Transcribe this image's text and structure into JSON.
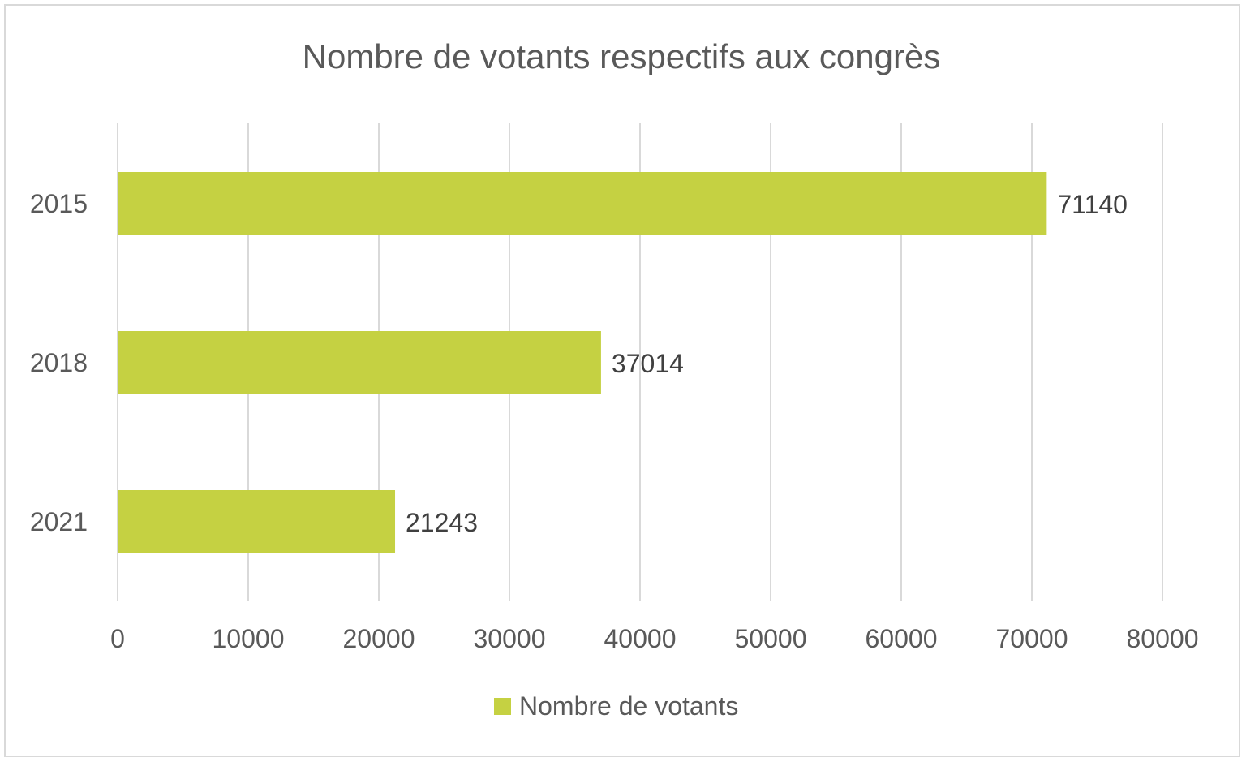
{
  "chart_data": {
    "type": "bar",
    "orientation": "horizontal",
    "title": "Nombre de votants respectifs aux congrès",
    "categories": [
      "2015",
      "2018",
      "2021"
    ],
    "series": [
      {
        "name": "Nombre de votants",
        "values": [
          71140,
          37014,
          21243
        ],
        "color": "#c5d142"
      }
    ],
    "xlabel": "",
    "ylabel": "",
    "xlim": [
      0,
      80000
    ],
    "xticks": [
      0,
      10000,
      20000,
      30000,
      40000,
      50000,
      60000,
      70000,
      80000
    ],
    "grid": true,
    "data_labels": true,
    "legend_position": "bottom"
  }
}
